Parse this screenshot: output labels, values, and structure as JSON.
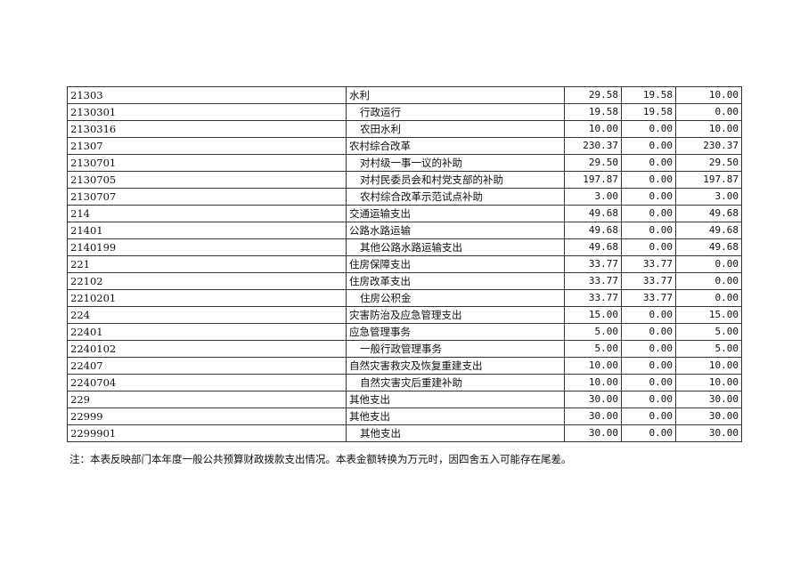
{
  "rows": [
    {
      "code": "21303",
      "name": "水利",
      "indent": false,
      "total": "29.58",
      "basic": "19.58",
      "project": "10.00"
    },
    {
      "code": "2130301",
      "name": "行政运行",
      "indent": true,
      "total": "19.58",
      "basic": "19.58",
      "project": "0.00"
    },
    {
      "code": "2130316",
      "name": "农田水利",
      "indent": true,
      "total": "10.00",
      "basic": "0.00",
      "project": "10.00"
    },
    {
      "code": "21307",
      "name": "农村综合改革",
      "indent": false,
      "total": "230.37",
      "basic": "0.00",
      "project": "230.37"
    },
    {
      "code": "2130701",
      "name": "对村级一事一议的补助",
      "indent": true,
      "total": "29.50",
      "basic": "0.00",
      "project": "29.50"
    },
    {
      "code": "2130705",
      "name": "对村民委员会和村党支部的补助",
      "indent": true,
      "total": "197.87",
      "basic": "0.00",
      "project": "197.87"
    },
    {
      "code": "2130707",
      "name": "农村综合改革示范试点补助",
      "indent": true,
      "total": "3.00",
      "basic": "0.00",
      "project": "3.00"
    },
    {
      "code": "214",
      "name": "交通运输支出",
      "indent": false,
      "total": "49.68",
      "basic": "0.00",
      "project": "49.68"
    },
    {
      "code": "21401",
      "name": "公路水路运输",
      "indent": false,
      "total": "49.68",
      "basic": "0.00",
      "project": "49.68"
    },
    {
      "code": "2140199",
      "name": "其他公路水路运输支出",
      "indent": true,
      "total": "49.68",
      "basic": "0.00",
      "project": "49.68"
    },
    {
      "code": "221",
      "name": "住房保障支出",
      "indent": false,
      "total": "33.77",
      "basic": "33.77",
      "project": "0.00"
    },
    {
      "code": "22102",
      "name": "住房改革支出",
      "indent": false,
      "total": "33.77",
      "basic": "33.77",
      "project": "0.00"
    },
    {
      "code": "2210201",
      "name": "住房公积金",
      "indent": true,
      "total": "33.77",
      "basic": "33.77",
      "project": "0.00"
    },
    {
      "code": "224",
      "name": "灾害防治及应急管理支出",
      "indent": false,
      "total": "15.00",
      "basic": "0.00",
      "project": "15.00"
    },
    {
      "code": "22401",
      "name": "应急管理事务",
      "indent": false,
      "total": "5.00",
      "basic": "0.00",
      "project": "5.00"
    },
    {
      "code": "2240102",
      "name": "一般行政管理事务",
      "indent": true,
      "total": "5.00",
      "basic": "0.00",
      "project": "5.00"
    },
    {
      "code": "22407",
      "name": "自然灾害救灾及恢复重建支出",
      "indent": false,
      "total": "10.00",
      "basic": "0.00",
      "project": "10.00"
    },
    {
      "code": "2240704",
      "name": "自然灾害灾后重建补助",
      "indent": true,
      "total": "10.00",
      "basic": "0.00",
      "project": "10.00"
    },
    {
      "code": "229",
      "name": "其他支出",
      "indent": false,
      "total": "30.00",
      "basic": "0.00",
      "project": "30.00"
    },
    {
      "code": "22999",
      "name": "其他支出",
      "indent": false,
      "total": "30.00",
      "basic": "0.00",
      "project": "30.00"
    },
    {
      "code": "2299901",
      "name": "其他支出",
      "indent": true,
      "total": "30.00",
      "basic": "0.00",
      "project": "30.00"
    }
  ],
  "note": "注：本表反映部门本年度一般公共预算财政拨款支出情况。本表金额转换为万元时，因四舍五入可能存在尾差。"
}
